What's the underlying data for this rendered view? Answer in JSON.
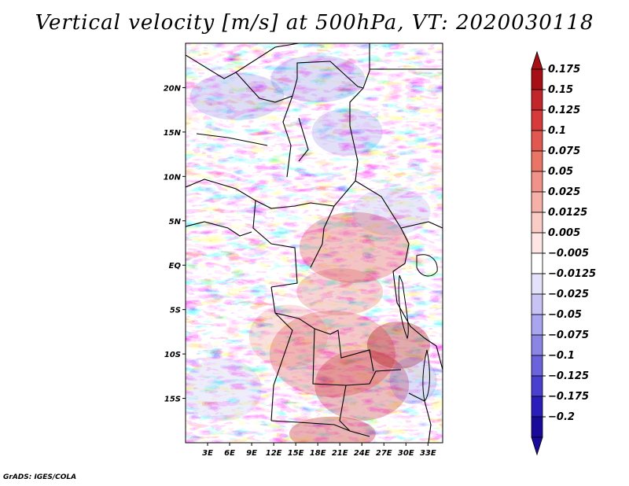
{
  "chart_data": {
    "type": "heatmap",
    "title": "Vertical velocity [m/s] at 500hPa, VT: 2020030118",
    "variable": "Vertical velocity",
    "units": "m/s",
    "level": "500hPa",
    "valid_time": "2020030118",
    "x_tick_labels": [
      "3E",
      "6E",
      "9E",
      "12E",
      "15E",
      "18E",
      "21E",
      "24E",
      "27E",
      "30E",
      "33E"
    ],
    "x_tick_values": [
      3,
      6,
      9,
      12,
      15,
      18,
      21,
      24,
      27,
      30,
      33
    ],
    "y_tick_labels": [
      "20N",
      "15N",
      "10N",
      "5N",
      "EQ",
      "5S",
      "10S",
      "15S"
    ],
    "y_tick_values": [
      20,
      15,
      10,
      5,
      0,
      -5,
      -10,
      -15
    ],
    "xlim": [
      0,
      35
    ],
    "ylim": [
      -20,
      25
    ],
    "colorbar": {
      "labels": [
        "0.175",
        "0.15",
        "0.125",
        "0.1",
        "0.075",
        "0.05",
        "0.025",
        "0.0125",
        "0.005",
        "−0.005",
        "−0.0125",
        "−0.025",
        "−0.05",
        "−0.075",
        "−0.1",
        "−0.125",
        "−0.175",
        "−0.2"
      ],
      "colors": [
        "#a50f15",
        "#c0262a",
        "#d63a3a",
        "#e0584f",
        "#e87566",
        "#f0928a",
        "#f5b0a8",
        "#f9cdc6",
        "#fde6e3",
        "#ffffff",
        "#e4e2fb",
        "#c7c4f5",
        "#aaa5ef",
        "#8b85e6",
        "#6b63dc",
        "#4a40d0",
        "#2a1dba",
        "#1a0a9a"
      ]
    }
  },
  "footer": "GrADS: IGES/COLA"
}
